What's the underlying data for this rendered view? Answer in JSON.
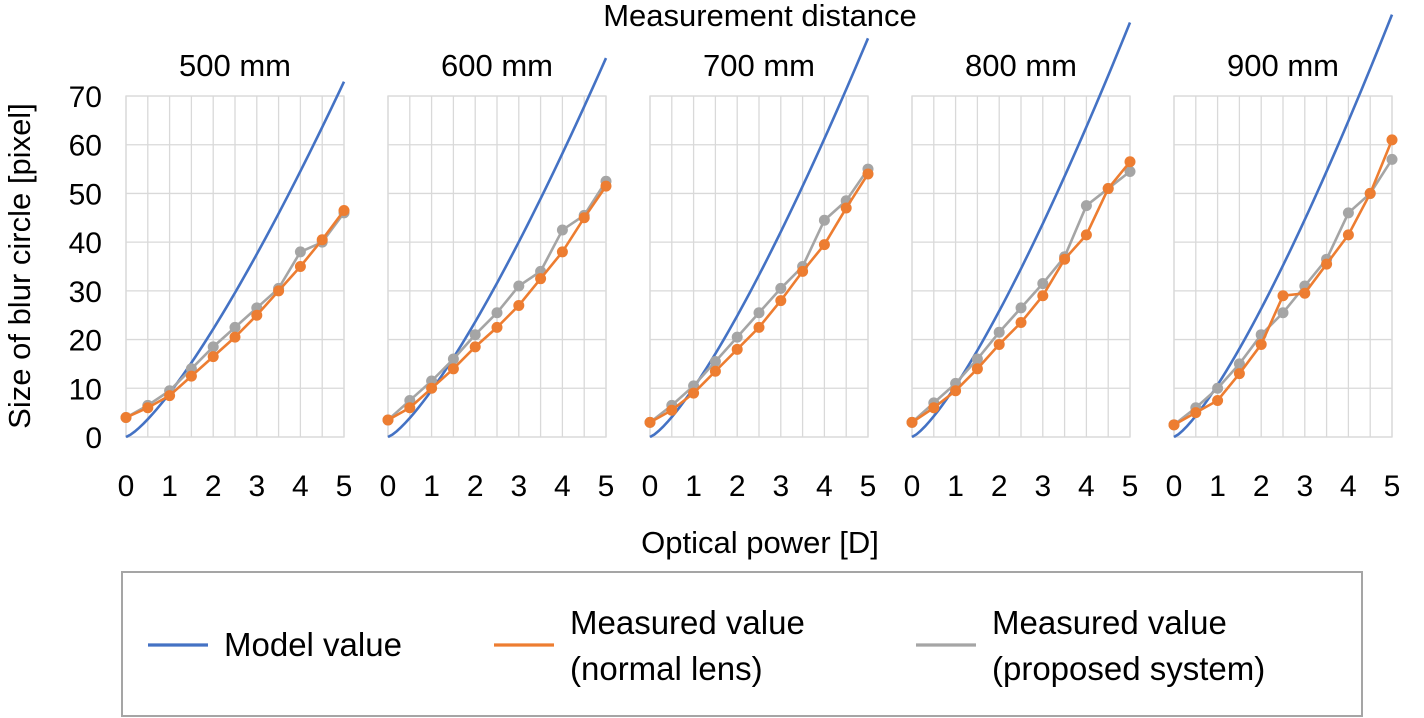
{
  "chart_data": {
    "type": "line",
    "title": "Measurement distance",
    "xlabel": "Optical power [D]",
    "ylabel": "Size of blur circle [pixel]",
    "xlim": [
      0,
      5
    ],
    "ylim": [
      0,
      70
    ],
    "x_ticks": [
      "0",
      "1",
      "2",
      "3",
      "4",
      "5"
    ],
    "y_ticks": [
      "0",
      "10",
      "20",
      "30",
      "40",
      "50",
      "60",
      "70"
    ],
    "x": [
      0,
      0.5,
      1,
      1.5,
      2,
      2.5,
      3,
      3.5,
      4,
      4.5,
      5
    ],
    "colors": {
      "model": "#4472c4",
      "normal": "#ed7d31",
      "proposed": "#a5a5a5",
      "grid": "#d9d9d9",
      "legend_border": "#a5a5a5"
    },
    "legend": [
      {
        "name": "Model value",
        "lines": [
          "Model value"
        ],
        "color": "#4472c4",
        "series": "model"
      },
      {
        "name": "Measured value (normal lens)",
        "lines": [
          "Measured value",
          "(normal lens)"
        ],
        "color": "#ed7d31",
        "series": "normal"
      },
      {
        "name": "Measured value (proposed system)",
        "lines": [
          "Measured value",
          "(proposed system)"
        ],
        "color": "#a5a5a5",
        "series": "proposed"
      }
    ],
    "panels": [
      {
        "title": "500 mm",
        "model_k": 9.0,
        "normal": [
          4,
          6,
          8.5,
          12.5,
          16.5,
          20.5,
          25,
          30,
          35,
          40.5,
          46.5
        ],
        "proposed": [
          4,
          6.5,
          9.5,
          14,
          18.5,
          22.5,
          26.5,
          30.5,
          38,
          40,
          46
        ]
      },
      {
        "title": "600 mm",
        "model_k": 9.6,
        "normal": [
          3.5,
          6,
          10,
          14,
          18.5,
          22.5,
          27,
          32.5,
          38,
          45,
          51.5
        ],
        "proposed": [
          3.5,
          7.5,
          11.5,
          16,
          21,
          25.5,
          31,
          34,
          42.5,
          45.5,
          52.5
        ]
      },
      {
        "title": "700 mm",
        "model_k": 10.1,
        "normal": [
          3,
          5.5,
          9,
          13.5,
          18,
          22.5,
          28,
          34,
          39.5,
          47,
          54
        ],
        "proposed": [
          3,
          6.5,
          10.5,
          15.5,
          20.5,
          25.5,
          30.5,
          35,
          44.5,
          48.5,
          55
        ]
      },
      {
        "title": "800 mm",
        "model_k": 10.5,
        "normal": [
          3,
          6,
          9.5,
          14,
          19,
          23.5,
          29,
          36.5,
          41.5,
          51,
          56.5
        ],
        "proposed": [
          3,
          7,
          11,
          16,
          21.5,
          26.5,
          31.5,
          37,
          47.5,
          51,
          54.5
        ]
      },
      {
        "title": "900 mm",
        "model_k": 10.7,
        "normal": [
          2.5,
          5,
          7.5,
          13,
          19,
          29,
          29.5,
          35.5,
          41.5,
          50,
          61
        ],
        "proposed": [
          2.5,
          6,
          10,
          15,
          21,
          25.5,
          31,
          36.5,
          46,
          50,
          57
        ]
      }
    ]
  }
}
